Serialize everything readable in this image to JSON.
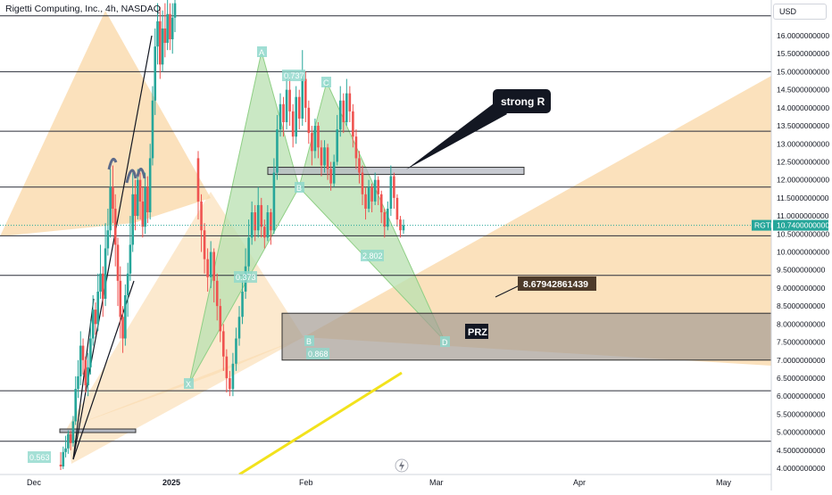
{
  "header": {
    "title": "Rigetti Computing, Inc., 4h, NASDAQ",
    "currency": "USD"
  },
  "price_axis": {
    "ticks": [
      "16.0000000000",
      "15.5000000000",
      "15.0000000000",
      "14.5000000000",
      "14.0000000000",
      "13.5000000000",
      "13.0000000000",
      "12.5000000000",
      "12.0000000000",
      "11.5000000000",
      "11.0000000000",
      "10.5000000000",
      "10.0000000000",
      "9.5000000000",
      "9.0000000000",
      "8.5000000000",
      "8.0000000000",
      "7.5000000000",
      "7.0000000000",
      "6.5000000000",
      "6.0000000000",
      "5.5000000000",
      "5.0000000000",
      "4.5000000000",
      "4.0000000000"
    ],
    "tick_values": [
      16,
      15.5,
      15,
      14.5,
      14,
      13.5,
      13,
      12.5,
      12,
      11.5,
      11,
      10.5,
      10,
      9.5,
      9,
      8.5,
      8,
      7.5,
      7,
      6.5,
      6,
      5.5,
      5,
      4.5,
      4
    ],
    "last_price_label": "10.7400000000",
    "symbol_tag": "RGTI",
    "last_price": 10.74
  },
  "time_axis": {
    "labels": [
      "Dec",
      "2025",
      "Feb",
      "Mar",
      "Apr",
      "May"
    ]
  },
  "annotations": {
    "strong_r": "strong   R",
    "target_price": "8.67942861439",
    "prz": "PRZ",
    "point_a": "A",
    "point_c": "C",
    "point_b": "B",
    "point_x": "X",
    "point_d": "D",
    "ratio_0737": "0.737",
    "ratio_0373": "0.373",
    "ratio_2802": "2.802",
    "ratio_0868": "0.868",
    "ratio_0563": "0.563"
  },
  "colors": {
    "bull": "#26a69a",
    "bear": "#ef5350",
    "harmonic_fill": "#b8e0b0",
    "triangle_fill": "#f9d7a6",
    "prz_fill": "#a59d94",
    "support_line": "#f2e21c",
    "price_tag": "#26a69a"
  },
  "chart_data": {
    "type": "candlestick",
    "symbol": "RGTI",
    "timeframe": "4h",
    "exchange": "NASDAQ",
    "y_range": [
      3.85,
      17.0
    ],
    "horizontal_levels": [
      16.55,
      15.0,
      13.35,
      11.8,
      10.45,
      9.35,
      6.15,
      4.75
    ],
    "resistance_zone": [
      12.15,
      12.35
    ],
    "prz_zone": [
      7.0,
      8.3
    ],
    "target_level": 8.68,
    "harmonic_points": {
      "X": 6.5,
      "A": 15.8,
      "B": 11.9,
      "C": 15.0,
      "D": 7.5
    },
    "fib_ratios": [
      "0.737",
      "0.373",
      "2.802",
      "0.868",
      "0.563"
    ],
    "candles": [
      [
        4.1,
        4.05,
        4.45,
        3.95
      ],
      [
        4.05,
        4.45,
        4.6,
        3.98
      ],
      [
        4.45,
        4.55,
        4.9,
        4.3
      ],
      [
        4.55,
        4.95,
        5.05,
        4.4
      ],
      [
        4.95,
        4.7,
        5.05,
        4.5
      ],
      [
        4.7,
        5.3,
        5.45,
        4.6
      ],
      [
        5.3,
        6.2,
        6.55,
        5.2
      ],
      [
        6.2,
        6.55,
        7.0,
        5.95
      ],
      [
        6.55,
        7.4,
        7.8,
        6.3
      ],
      [
        7.4,
        7.0,
        7.6,
        6.6
      ],
      [
        7.0,
        6.3,
        7.1,
        6.1
      ],
      [
        6.3,
        6.8,
        7.2,
        6.0
      ],
      [
        6.8,
        7.6,
        8.1,
        6.6
      ],
      [
        7.6,
        8.4,
        8.8,
        7.4
      ],
      [
        8.4,
        8.0,
        8.6,
        7.7
      ],
      [
        8.0,
        8.9,
        9.4,
        7.8
      ],
      [
        8.9,
        9.4,
        10.2,
        8.7
      ],
      [
        9.4,
        8.7,
        9.6,
        8.2
      ],
      [
        8.7,
        10.1,
        10.8,
        8.5
      ],
      [
        10.1,
        10.6,
        11.2,
        9.9
      ],
      [
        10.6,
        11.8,
        12.3,
        10.4
      ],
      [
        11.8,
        11.2,
        12.4,
        10.8
      ],
      [
        11.2,
        10.2,
        11.6,
        9.6
      ],
      [
        10.2,
        9.2,
        10.4,
        8.5
      ],
      [
        9.2,
        8.2,
        9.6,
        7.6
      ],
      [
        8.2,
        7.6,
        8.5,
        7.2
      ],
      [
        7.6,
        8.8,
        9.1,
        7.4
      ],
      [
        8.8,
        9.4,
        9.7,
        8.2
      ],
      [
        9.4,
        10.2,
        11.0,
        9.2
      ],
      [
        10.2,
        11.6,
        12.2,
        10.0
      ],
      [
        11.6,
        11.0,
        12.0,
        10.6
      ],
      [
        11.0,
        12.0,
        12.3,
        10.9
      ],
      [
        12.0,
        11.4,
        12.2,
        10.9
      ],
      [
        11.4,
        10.7,
        11.8,
        10.4
      ],
      [
        10.7,
        11.8,
        12.2,
        10.5
      ],
      [
        11.8,
        11.1,
        12.1,
        10.8
      ],
      [
        11.1,
        12.6,
        13.0,
        10.9
      ],
      [
        12.6,
        14.2,
        14.6,
        12.4
      ],
      [
        14.2,
        15.7,
        16.2,
        13.8
      ],
      [
        15.7,
        16.4,
        16.9,
        15.2
      ],
      [
        16.4,
        15.2,
        16.8,
        14.8
      ],
      [
        15.2,
        16.2,
        16.7,
        15.0
      ],
      [
        16.2,
        15.8,
        16.9,
        15.4
      ],
      [
        15.8,
        16.6,
        17.0,
        15.6
      ],
      [
        16.6,
        15.9,
        16.9,
        15.6
      ],
      [
        15.9,
        16.5,
        16.9,
        15.5
      ],
      [
        16.5,
        16.9,
        17.0,
        16.1
      ],
      [
        12.6,
        11.4,
        12.8,
        10.9
      ],
      [
        11.4,
        10.6,
        11.6,
        10.0
      ],
      [
        10.6,
        9.8,
        10.8,
        9.4
      ],
      [
        9.8,
        9.3,
        10.1,
        8.9
      ],
      [
        9.3,
        10.0,
        10.3,
        9.0
      ],
      [
        10.0,
        9.2,
        10.1,
        8.6
      ],
      [
        9.2,
        8.5,
        9.4,
        8.1
      ],
      [
        8.5,
        7.8,
        8.7,
        7.5
      ],
      [
        7.8,
        7.1,
        8.0,
        6.7
      ],
      [
        7.1,
        6.5,
        7.3,
        6.1
      ],
      [
        6.5,
        6.2,
        6.7,
        6.0
      ],
      [
        6.2,
        6.9,
        7.2,
        6.0
      ],
      [
        6.9,
        7.6,
        7.9,
        6.7
      ],
      [
        7.6,
        8.2,
        8.5,
        7.4
      ],
      [
        8.2,
        8.9,
        9.2,
        8.0
      ],
      [
        8.9,
        9.6,
        10.1,
        8.7
      ],
      [
        9.6,
        10.4,
        10.9,
        9.4
      ],
      [
        10.4,
        11.1,
        11.4,
        10.2
      ],
      [
        11.1,
        10.6,
        11.3,
        10.3
      ],
      [
        10.6,
        11.3,
        11.8,
        10.4
      ],
      [
        11.3,
        10.7,
        11.5,
        10.4
      ],
      [
        10.7,
        10.4,
        10.9,
        10.1
      ],
      [
        10.4,
        11.1,
        11.3,
        10.3
      ],
      [
        11.1,
        10.6,
        11.2,
        10.2
      ],
      [
        10.6,
        12.2,
        12.6,
        10.5
      ],
      [
        12.2,
        13.4,
        13.8,
        12.0
      ],
      [
        13.4,
        14.1,
        14.4,
        13.2
      ],
      [
        14.1,
        13.6,
        14.3,
        13.2
      ],
      [
        13.6,
        14.5,
        15.0,
        13.4
      ],
      [
        14.5,
        13.9,
        14.8,
        13.5
      ],
      [
        13.9,
        13.2,
        14.1,
        12.9
      ],
      [
        13.2,
        14.3,
        14.6,
        13.0
      ],
      [
        14.3,
        13.7,
        14.5,
        13.4
      ],
      [
        13.7,
        14.8,
        15.6,
        13.5
      ],
      [
        14.8,
        14.0,
        15.0,
        13.6
      ],
      [
        14.0,
        13.3,
        14.2,
        13.0
      ],
      [
        13.3,
        12.8,
        13.5,
        12.4
      ],
      [
        12.8,
        13.5,
        13.7,
        12.6
      ],
      [
        13.5,
        12.9,
        13.6,
        12.6
      ],
      [
        12.9,
        12.4,
        13.1,
        12.1
      ],
      [
        12.4,
        12.9,
        13.1,
        12.2
      ],
      [
        12.9,
        12.3,
        13.0,
        12.0
      ],
      [
        12.3,
        11.9,
        12.5,
        11.7
      ],
      [
        11.9,
        12.5,
        12.7,
        11.8
      ],
      [
        12.5,
        13.4,
        13.8,
        12.4
      ],
      [
        13.4,
        14.2,
        14.6,
        13.2
      ],
      [
        14.2,
        13.6,
        14.4,
        13.3
      ],
      [
        13.6,
        14.4,
        14.8,
        13.5
      ],
      [
        14.4,
        13.9,
        14.6,
        13.6
      ],
      [
        13.9,
        13.2,
        14.1,
        12.9
      ],
      [
        13.2,
        12.6,
        13.4,
        12.3
      ],
      [
        12.6,
        12.2,
        12.8,
        11.9
      ],
      [
        12.2,
        11.6,
        12.4,
        11.3
      ],
      [
        11.6,
        11.2,
        11.8,
        10.9
      ],
      [
        11.2,
        11.8,
        12.0,
        11.1
      ],
      [
        11.8,
        11.4,
        11.9,
        11.1
      ],
      [
        11.4,
        12.0,
        12.2,
        11.3
      ],
      [
        12.0,
        11.6,
        12.1,
        11.3
      ],
      [
        11.6,
        11.1,
        11.7,
        10.8
      ],
      [
        11.1,
        10.7,
        11.2,
        10.4
      ],
      [
        10.7,
        11.2,
        11.4,
        10.6
      ],
      [
        11.2,
        12.1,
        12.4,
        11.0
      ],
      [
        12.1,
        11.5,
        12.2,
        11.2
      ],
      [
        11.5,
        10.9,
        11.6,
        10.7
      ],
      [
        10.9,
        10.6,
        11.0,
        10.4
      ],
      [
        10.6,
        10.74,
        10.9,
        10.5
      ]
    ]
  }
}
